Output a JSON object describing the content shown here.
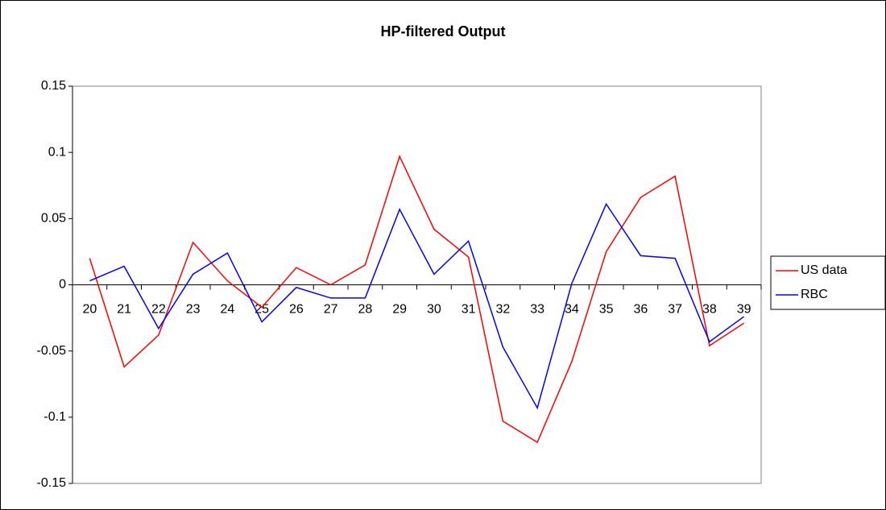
{
  "chart_data": {
    "type": "line",
    "title": "HP-filtered Output",
    "categories": [
      "20",
      "21",
      "22",
      "23",
      "24",
      "25",
      "26",
      "27",
      "28",
      "29",
      "30",
      "31",
      "32",
      "33",
      "34",
      "35",
      "36",
      "37",
      "38",
      "39"
    ],
    "series": [
      {
        "name": "US data",
        "color": "#ff0000",
        "values": [
          0.02,
          -0.062,
          -0.038,
          0.032,
          0.003,
          -0.017,
          0.013,
          0.0,
          0.015,
          0.097,
          0.042,
          0.021,
          -0.103,
          -0.119,
          -0.058,
          0.025,
          0.066,
          0.082,
          -0.046,
          -0.029
        ]
      },
      {
        "name": "RBC",
        "color": "#0000ff",
        "values": [
          0.003,
          0.014,
          -0.033,
          0.008,
          0.024,
          -0.028,
          -0.002,
          -0.01,
          -0.01,
          0.057,
          0.008,
          0.033,
          -0.047,
          -0.093,
          0.001,
          0.061,
          0.022,
          0.02,
          -0.043,
          -0.024
        ]
      }
    ],
    "ylim": [
      -0.15,
      0.15
    ],
    "yticks": [
      -0.15,
      -0.1,
      -0.05,
      0,
      0.05,
      0.1,
      0.15
    ],
    "grid": false,
    "legend": "right"
  }
}
